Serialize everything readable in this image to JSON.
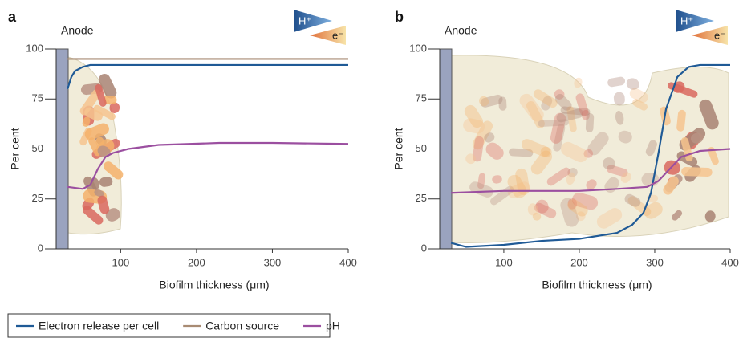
{
  "chart_data": [
    {
      "type": "line",
      "panel_label": "a",
      "annotation": "Anode",
      "icon_labels": [
        "H⁺",
        "e⁻"
      ],
      "xlabel": "Biofilm thickness (μm)",
      "ylabel": "Per cent",
      "xlim": [
        15,
        400
      ],
      "ylim": [
        0,
        100
      ],
      "xticks": [
        100,
        200,
        300,
        400
      ],
      "yticks": [
        0,
        25,
        50,
        75,
        100
      ],
      "series": [
        {
          "name": "Electron release per cell",
          "color": "#1f5a96",
          "x": [
            30,
            35,
            40,
            50,
            60,
            80,
            400
          ],
          "values": [
            80,
            86,
            89,
            91,
            92,
            92,
            92
          ]
        },
        {
          "name": "Carbon source",
          "color": "#a88b73",
          "x": [
            30,
            400
          ],
          "values": [
            95,
            95
          ]
        },
        {
          "name": "pH",
          "color": "#9b4fa0",
          "x": [
            30,
            50,
            60,
            70,
            80,
            90,
            110,
            150,
            230,
            300,
            400
          ],
          "values": [
            31,
            30,
            32,
            40,
            46,
            48,
            50,
            52,
            53,
            53,
            52.5
          ]
        }
      ]
    },
    {
      "type": "line",
      "panel_label": "b",
      "annotation": "Anode",
      "icon_labels": [
        "H⁺",
        "e⁻"
      ],
      "xlabel": "Biofilm thickness (μm)",
      "ylabel": "Per cent",
      "xlim": [
        15,
        400
      ],
      "ylim": [
        0,
        100
      ],
      "xticks": [
        100,
        200,
        300,
        400
      ],
      "yticks": [
        0,
        25,
        50,
        75,
        100
      ],
      "series": [
        {
          "color": "#1f5a96",
          "x": [
            30,
            50,
            100,
            150,
            200,
            250,
            270,
            285,
            295,
            305,
            315,
            330,
            345,
            360,
            400
          ],
          "values": [
            3,
            1,
            2,
            4,
            5,
            8,
            12,
            18,
            28,
            48,
            70,
            86,
            91,
            92,
            92
          ]
        },
        {
          "color": "#9b4fa0",
          "x": [
            30,
            100,
            200,
            250,
            290,
            305,
            320,
            335,
            360,
            400
          ],
          "values": [
            28,
            29,
            29,
            30,
            31,
            34,
            40,
            46,
            49,
            50
          ]
        }
      ]
    }
  ],
  "legend_title_hidden": false
}
